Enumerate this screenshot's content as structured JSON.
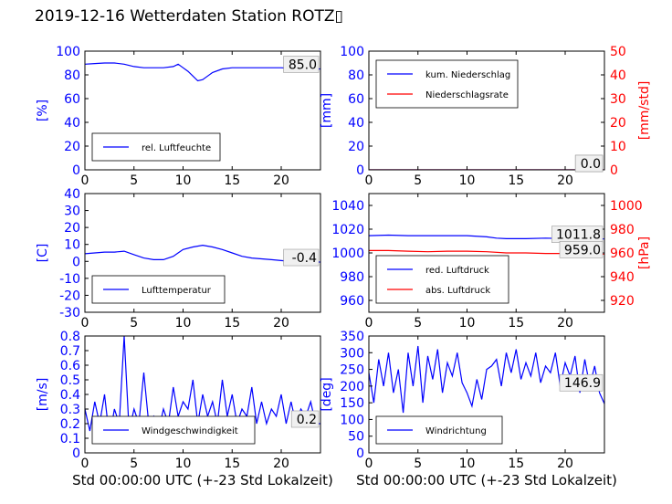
{
  "title": "2019-12-16 Wetterdaten Station ROTZ▯",
  "colors": {
    "primary": "#0000ff",
    "secondary": "#ff0000",
    "axis": "#000000"
  },
  "chart_data": [
    {
      "type": "line",
      "ylabel": "[%]",
      "xlim": [
        0,
        24
      ],
      "ylim": [
        0,
        100
      ],
      "xticks": [
        0,
        5,
        10,
        15,
        20
      ],
      "yticks": [
        0,
        20,
        40,
        60,
        80,
        100
      ],
      "grid": false,
      "legend_placement": "bottom-left",
      "series": [
        {
          "name": "rel. Luftfeuchte",
          "color": "#0000ff",
          "x": [
            0,
            1,
            2,
            3,
            4,
            5,
            6,
            7,
            8,
            9,
            9.5,
            10,
            10.5,
            11,
            11.5,
            12,
            12.5,
            13,
            14,
            15,
            16,
            17,
            18,
            19,
            20,
            21,
            22,
            23,
            24
          ],
          "y": [
            89,
            89.5,
            90,
            90,
            89,
            87,
            86,
            86,
            86,
            87,
            89,
            86,
            83,
            79,
            75,
            76,
            79,
            82,
            85,
            86,
            86,
            86,
            86,
            86,
            86,
            85.5,
            85,
            85,
            85
          ]
        }
      ],
      "annotations": [
        "85.0"
      ]
    },
    {
      "type": "line",
      "ylabel": "[mm]",
      "y2label": "[mm/std]",
      "xlim": [
        0,
        24
      ],
      "ylim": [
        0,
        100
      ],
      "y2lim": [
        0,
        50
      ],
      "xticks": [
        0,
        5,
        10,
        15,
        20
      ],
      "yticks": [
        0,
        20,
        40,
        60,
        80,
        100
      ],
      "y2ticks": [
        0,
        10,
        20,
        30,
        40,
        50
      ],
      "grid": false,
      "legend_placement": "top-left",
      "series": [
        {
          "name": "kum. Niederschlag",
          "color": "#0000ff",
          "axis": "left",
          "x": [
            0,
            24
          ],
          "y": [
            0,
            0
          ]
        },
        {
          "name": "Niederschlagsrate",
          "color": "#ff0000",
          "axis": "right",
          "x": [
            0,
            24
          ],
          "y": [
            0,
            0
          ]
        }
      ],
      "annotations": [
        "0.0",
        "0.0"
      ]
    },
    {
      "type": "line",
      "ylabel": "[C]",
      "xlim": [
        0,
        24
      ],
      "ylim": [
        -30,
        40
      ],
      "xticks": [
        0,
        5,
        10,
        15,
        20
      ],
      "yticks": [
        -30,
        -20,
        -10,
        0,
        10,
        20,
        30,
        40
      ],
      "grid": false,
      "legend_placement": "bottom-left",
      "series": [
        {
          "name": "Lufttemperatur",
          "color": "#0000ff",
          "x": [
            0,
            1,
            2,
            3,
            4,
            5,
            6,
            7,
            8,
            9,
            9.5,
            10,
            11,
            12,
            13,
            14,
            15,
            16,
            17,
            18,
            19,
            20,
            21,
            22,
            23,
            24
          ],
          "y": [
            4.5,
            5,
            5.5,
            5.5,
            6,
            4,
            2,
            1,
            1,
            3,
            5,
            7,
            8.5,
            9.5,
            8.5,
            7,
            5,
            3,
            2,
            1.5,
            1,
            0.5,
            0,
            -0.2,
            -0.4,
            -0.4
          ]
        }
      ],
      "annotations": [
        "-0.4"
      ]
    },
    {
      "type": "line",
      "ylabel": "",
      "y2label": "[hPa]",
      "xlim": [
        0,
        24
      ],
      "ylim": [
        950,
        1050
      ],
      "y2lim": [
        910,
        1010
      ],
      "xticks": [
        0,
        5,
        10,
        15,
        20
      ],
      "yticks": [
        960,
        980,
        1000,
        1020,
        1040
      ],
      "y2ticks": [
        920,
        940,
        960,
        980,
        1000
      ],
      "grid": false,
      "legend_placement": "bottom-left",
      "series": [
        {
          "name": "red. Luftdruck",
          "color": "#0000ff",
          "axis": "left",
          "x": [
            0,
            2,
            4,
            6,
            8,
            10,
            12,
            13,
            14,
            16,
            18,
            20,
            22,
            24
          ],
          "y": [
            1014.5,
            1015,
            1014.5,
            1014.5,
            1014.5,
            1014.5,
            1013.5,
            1012.5,
            1012,
            1012,
            1012.5,
            1012,
            1011.8,
            1011.8
          ]
        },
        {
          "name": "abs. Luftdruck",
          "color": "#ff0000",
          "axis": "right",
          "x": [
            0,
            2,
            4,
            6,
            8,
            10,
            12,
            14,
            16,
            18,
            20,
            22,
            24
          ],
          "y": [
            962,
            962,
            961.5,
            961,
            961.5,
            961.5,
            961,
            960,
            960,
            959.5,
            959.5,
            959,
            959
          ]
        }
      ],
      "annotations": [
        "1011.8",
        "959.0"
      ]
    },
    {
      "type": "line",
      "ylabel": "[m/s]",
      "xlabel": "Std 00:00:00 UTC (+-23 Std Lokalzeit)",
      "xlim": [
        0,
        24
      ],
      "ylim": [
        0,
        0.8
      ],
      "xticks": [
        0,
        5,
        10,
        15,
        20
      ],
      "yticks": [
        0.0,
        0.1,
        0.2,
        0.3,
        0.4,
        0.5,
        0.6,
        0.7,
        0.8
      ],
      "grid": false,
      "legend_placement": "bottom-left",
      "series": [
        {
          "name": "Windgeschwindigkeit",
          "color": "#0000ff",
          "x": [
            0,
            0.5,
            1,
            1.5,
            2,
            2.5,
            3,
            3.5,
            4,
            4.5,
            5,
            5.5,
            6,
            6.5,
            7,
            7.5,
            8,
            8.5,
            9,
            9.5,
            10,
            10.5,
            11,
            11.5,
            12,
            12.5,
            13,
            13.5,
            14,
            14.5,
            15,
            15.5,
            16,
            16.5,
            17,
            17.5,
            18,
            18.5,
            19,
            19.5,
            20,
            20.5,
            21,
            21.5,
            22,
            22.5,
            23,
            23.5,
            24
          ],
          "y": [
            0.3,
            0.15,
            0.35,
            0.2,
            0.4,
            0.1,
            0.3,
            0.2,
            0.8,
            0.15,
            0.3,
            0.2,
            0.55,
            0.2,
            0.25,
            0.15,
            0.3,
            0.2,
            0.45,
            0.25,
            0.35,
            0.3,
            0.5,
            0.2,
            0.4,
            0.25,
            0.35,
            0.2,
            0.5,
            0.25,
            0.4,
            0.2,
            0.3,
            0.25,
            0.45,
            0.2,
            0.35,
            0.2,
            0.3,
            0.25,
            0.4,
            0.2,
            0.35,
            0.2,
            0.3,
            0.25,
            0.35,
            0.2,
            0.2
          ]
        }
      ],
      "annotations": [
        "0.2"
      ]
    },
    {
      "type": "line",
      "ylabel": "[deg]",
      "xlabel": "Std 00:00:00 UTC (+-23 Std Lokalzeit)",
      "xlim": [
        0,
        24
      ],
      "ylim": [
        0,
        350
      ],
      "xticks": [
        0,
        5,
        10,
        15,
        20
      ],
      "yticks": [
        0,
        50,
        100,
        150,
        200,
        250,
        300,
        350
      ],
      "grid": false,
      "legend_placement": "bottom-left",
      "series": [
        {
          "name": "Windrichtung",
          "color": "#0000ff",
          "x": [
            0,
            0.5,
            1,
            1.5,
            2,
            2.5,
            3,
            3.5,
            4,
            4.5,
            5,
            5.5,
            6,
            6.5,
            7,
            7.5,
            8,
            8.5,
            9,
            9.5,
            10,
            10.5,
            11,
            11.5,
            12,
            12.5,
            13,
            13.5,
            14,
            14.5,
            15,
            15.5,
            16,
            16.5,
            17,
            17.5,
            18,
            18.5,
            19,
            19.5,
            20,
            20.5,
            21,
            21.5,
            22,
            22.5,
            23,
            23.5,
            24
          ],
          "y": [
            240,
            150,
            280,
            200,
            300,
            180,
            250,
            120,
            300,
            200,
            320,
            150,
            290,
            220,
            310,
            180,
            270,
            230,
            300,
            210,
            180,
            140,
            220,
            160,
            250,
            260,
            280,
            200,
            300,
            240,
            310,
            220,
            270,
            230,
            300,
            210,
            260,
            240,
            300,
            200,
            270,
            230,
            290,
            180,
            280,
            200,
            260,
            180,
            147
          ]
        }
      ],
      "annotations": [
        "146.9"
      ]
    }
  ]
}
